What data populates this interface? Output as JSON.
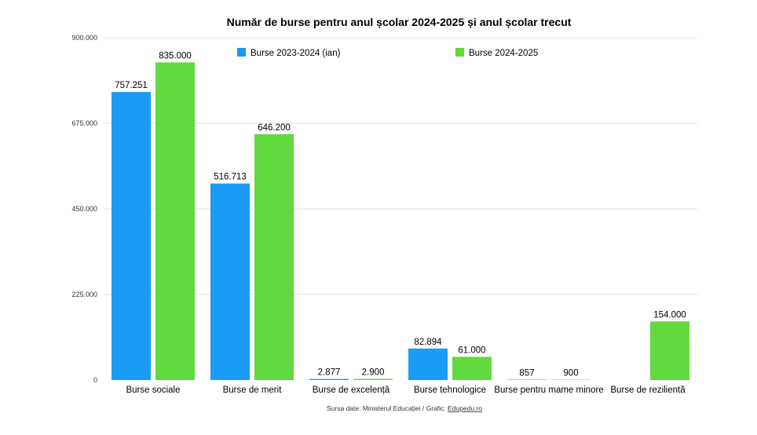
{
  "chart_data": {
    "type": "bar",
    "title": "Număr de burse pentru anul școlar 2024-2025 și anul școlar trecut",
    "categories": [
      "Burse sociale",
      "Burse de merit",
      "Burse de excelență",
      "Burse tehnologice",
      "Burse pentru mame minore",
      "Burse de rezilientă"
    ],
    "series": [
      {
        "name": "Burse 2023-2024 (ian)",
        "color": "#1a9bf6",
        "values": [
          757251,
          516713,
          2877,
          82894,
          857,
          null
        ],
        "labels": [
          "757.251",
          "516.713",
          "2.877",
          "82.894",
          "857",
          ""
        ]
      },
      {
        "name": "Burse 2024-2025",
        "color": "#62d93e",
        "values": [
          835000,
          646200,
          2900,
          61000,
          900,
          154000
        ],
        "labels": [
          "835.000",
          "646.200",
          "2.900",
          "61.000",
          "900",
          "154.000"
        ]
      }
    ],
    "ylim": [
      0,
      900000
    ],
    "yticks": [
      0,
      225000,
      450000,
      675000,
      900000
    ],
    "ytick_labels": [
      "0",
      "225.000",
      "450.000",
      "675.000",
      "900.000"
    ],
    "grid": true,
    "legend_position": "top"
  },
  "source": {
    "text": "Sursa date: Ministerul Educației / Grafic: ",
    "link": "Edupedu.ro"
  }
}
